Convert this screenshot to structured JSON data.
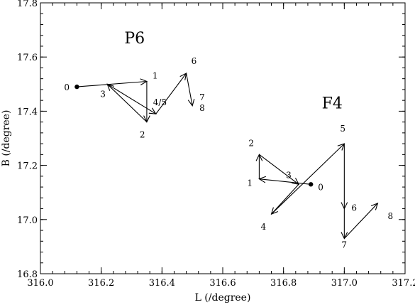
{
  "chart_data": {
    "type": "line",
    "xlabel": "L (/degree)",
    "ylabel": "B (/degree)",
    "xlim": [
      316.0,
      317.2
    ],
    "ylim": [
      16.8,
      17.8
    ],
    "x_major_ticks": [
      "316.0",
      "316.2",
      "316.4",
      "316.6",
      "316.8",
      "317.0",
      "317.2"
    ],
    "y_major_ticks": [
      "16.8",
      "17.0",
      "17.2",
      "17.4",
      "17.6",
      "17.8"
    ],
    "grid": false,
    "series": [
      {
        "name": "P6",
        "name_position": [
          316.31,
          17.65
        ],
        "points": [
          {
            "label": "0",
            "x": 316.12,
            "y": 17.49
          },
          {
            "label": "1",
            "x": 316.35,
            "y": 17.51
          },
          {
            "label": "2",
            "x": 316.35,
            "y": 17.36
          },
          {
            "label": "3",
            "x": 316.22,
            "y": 17.5
          },
          {
            "label": "4/5",
            "x": 316.38,
            "y": 17.39
          },
          {
            "label": "6",
            "x": 316.48,
            "y": 17.54
          },
          {
            "label": "7",
            "x": 316.5,
            "y": 17.42
          },
          {
            "label": "8",
            "x": 316.5,
            "y": 17.42
          }
        ]
      },
      {
        "name": "F4",
        "name_position": [
          316.96,
          17.41
        ],
        "points": [
          {
            "label": "0",
            "x": 316.89,
            "y": 17.13
          },
          {
            "label": "1",
            "x": 316.72,
            "y": 17.15
          },
          {
            "label": "2",
            "x": 316.72,
            "y": 17.24
          },
          {
            "label": "3",
            "x": 316.85,
            "y": 17.13
          },
          {
            "label": "4",
            "x": 316.76,
            "y": 17.02
          },
          {
            "label": "5",
            "x": 317.0,
            "y": 17.28
          },
          {
            "label": "6",
            "x": 317.0,
            "y": 17.04
          },
          {
            "label": "7",
            "x": 317.0,
            "y": 16.93
          },
          {
            "label": "8",
            "x": 317.11,
            "y": 17.06
          }
        ]
      }
    ]
  }
}
